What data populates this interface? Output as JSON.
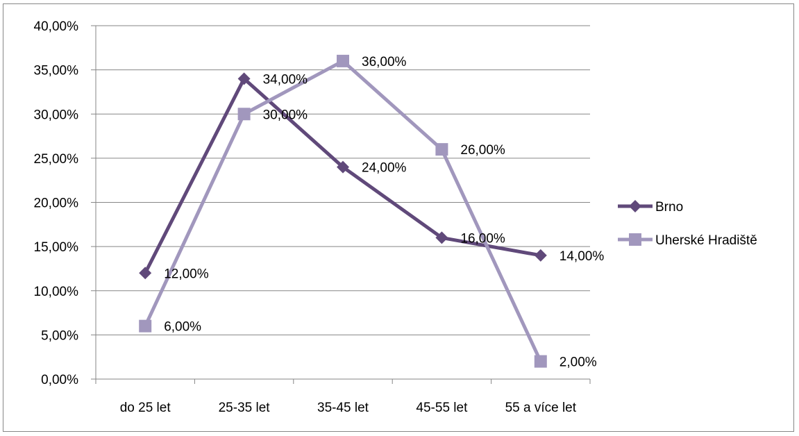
{
  "chart_data": {
    "type": "line",
    "title": "",
    "xlabel": "",
    "ylabel": "",
    "categories": [
      "do 25 let",
      "25-35 let",
      "35-45 let",
      "45-55 let",
      "55 a více let"
    ],
    "ylim": [
      0,
      0.4
    ],
    "ytick_labels": [
      "0,00%",
      "5,00%",
      "10,00%",
      "15,00%",
      "20,00%",
      "25,00%",
      "30,00%",
      "35,00%",
      "40,00%"
    ],
    "grid": true,
    "legend_position": "right",
    "series": [
      {
        "name": "Brno",
        "values": [
          0.12,
          0.34,
          0.24,
          0.16,
          0.14
        ],
        "labels": [
          "12,00%",
          "34,00%",
          "24,00%",
          "16,00%",
          "14,00%"
        ],
        "color": "#60497A",
        "marker": "diamond"
      },
      {
        "name": "Uherské Hradiště",
        "values": [
          0.06,
          0.3,
          0.36,
          0.26,
          0.02
        ],
        "labels": [
          "6,00%",
          "30,00%",
          "36,00%",
          "26,00%",
          "2,00%"
        ],
        "color": "#A197BD",
        "marker": "square"
      }
    ]
  }
}
